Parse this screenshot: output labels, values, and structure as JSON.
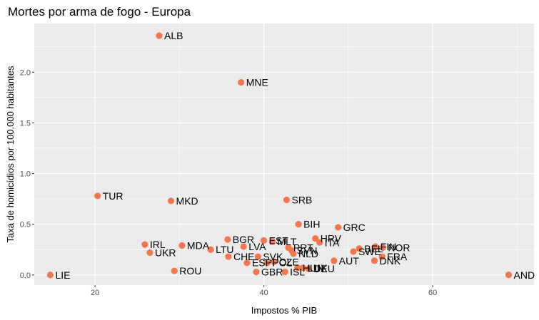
{
  "chart_data": {
    "type": "scatter",
    "title": "Mortes por arma de fogo - Europa",
    "xlabel": "Impostos % PIB",
    "ylabel": "Taxa de homicídios por 100.000 habitantes",
    "xlim": [
      12.8,
      72.0
    ],
    "ylim": [
      -0.1,
      2.48
    ],
    "xticks": [
      20,
      40,
      60
    ],
    "yticks": [
      0.0,
      0.5,
      1.0,
      1.5,
      2.0
    ],
    "ytick_labels": [
      "0.0",
      "0.5",
      "1.0",
      "1.5",
      "2.0"
    ],
    "grid": true,
    "point_color": "#F4764F",
    "panel_color": "#EBEBEB",
    "points": [
      {
        "label": "ALB",
        "x": 27.6,
        "y": 2.36
      },
      {
        "label": "MNE",
        "x": 37.3,
        "y": 1.9
      },
      {
        "label": "TUR",
        "x": 20.3,
        "y": 0.78
      },
      {
        "label": "MKD",
        "x": 29.0,
        "y": 0.73
      },
      {
        "label": "SRB",
        "x": 42.7,
        "y": 0.74
      },
      {
        "label": "BIH",
        "x": 44.1,
        "y": 0.5
      },
      {
        "label": "GRC",
        "x": 48.8,
        "y": 0.47
      },
      {
        "label": "IRL",
        "x": 25.9,
        "y": 0.3
      },
      {
        "label": "MDA",
        "x": 30.3,
        "y": 0.29
      },
      {
        "label": "UKR",
        "x": 26.5,
        "y": 0.22
      },
      {
        "label": "BGR",
        "x": 35.7,
        "y": 0.35
      },
      {
        "label": "LVA",
        "x": 37.6,
        "y": 0.28
      },
      {
        "label": "LTU",
        "x": 33.7,
        "y": 0.25
      },
      {
        "label": "CHE",
        "x": 35.8,
        "y": 0.18
      },
      {
        "label": "EST",
        "x": 40.0,
        "y": 0.34
      },
      {
        "label": "MLT",
        "x": 41.0,
        "y": 0.33
      },
      {
        "label": "PRT",
        "x": 42.9,
        "y": 0.27
      },
      {
        "label": "SVN",
        "x": 43.3,
        "y": 0.24
      },
      {
        "label": "NLD",
        "x": 43.5,
        "y": 0.21
      },
      {
        "label": "HRV",
        "x": 46.1,
        "y": 0.36
      },
      {
        "label": "ITA",
        "x": 46.6,
        "y": 0.32
      },
      {
        "label": "SVK",
        "x": 39.3,
        "y": 0.18
      },
      {
        "label": "ESP",
        "x": 38.0,
        "y": 0.12
      },
      {
        "label": "POL",
        "x": 40.4,
        "y": 0.12
      },
      {
        "label": "CZE",
        "x": 41.2,
        "y": 0.13
      },
      {
        "label": "ISL",
        "x": 42.5,
        "y": 0.03
      },
      {
        "label": "GBR",
        "x": 39.1,
        "y": 0.03
      },
      {
        "label": "ROU",
        "x": 29.4,
        "y": 0.04
      },
      {
        "label": "LUX",
        "x": 44.6,
        "y": 0.07
      },
      {
        "label": "HUN",
        "x": 44.0,
        "y": 0.07
      },
      {
        "label": "DEU",
        "x": 45.3,
        "y": 0.06
      },
      {
        "label": "AUT",
        "x": 48.3,
        "y": 0.14
      },
      {
        "label": "SWE",
        "x": 50.6,
        "y": 0.23
      },
      {
        "label": "BEL",
        "x": 51.3,
        "y": 0.26
      },
      {
        "label": "FIN",
        "x": 53.2,
        "y": 0.28
      },
      {
        "label": "NOR",
        "x": 54.1,
        "y": 0.27
      },
      {
        "label": "FRA",
        "x": 54.0,
        "y": 0.18
      },
      {
        "label": "DNK",
        "x": 53.1,
        "y": 0.14
      },
      {
        "label": "LIE",
        "x": 14.7,
        "y": 0.0
      },
      {
        "label": "AND",
        "x": 69.0,
        "y": 0.0
      }
    ]
  }
}
